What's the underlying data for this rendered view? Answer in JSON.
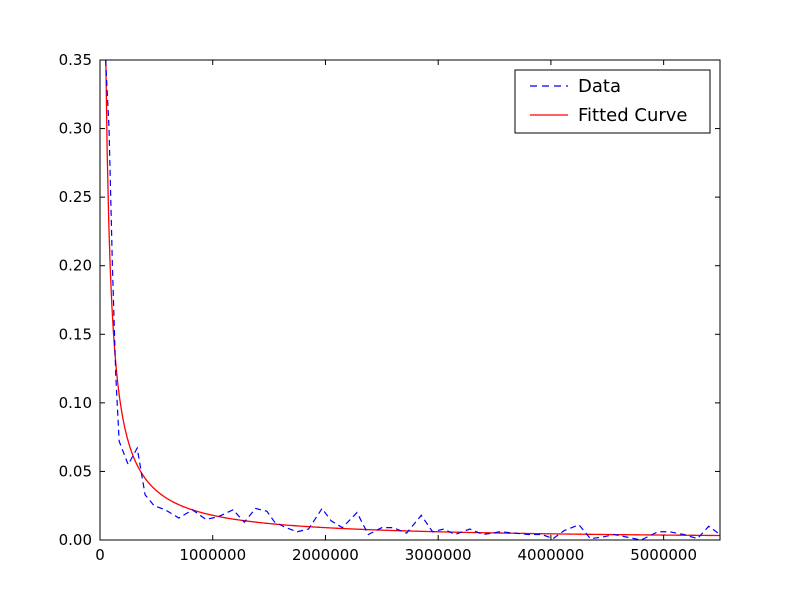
{
  "chart_data": {
    "type": "line",
    "title": "",
    "xlabel": "",
    "ylabel": "",
    "xlim": [
      0,
      5500000
    ],
    "ylim": [
      0,
      0.35
    ],
    "grid": false,
    "legend_placement": "top-right",
    "xticks": [
      {
        "value": 0,
        "label": "0"
      },
      {
        "value": 1000000,
        "label": "1000000"
      },
      {
        "value": 2000000,
        "label": "2000000"
      },
      {
        "value": 3000000,
        "label": "3000000"
      },
      {
        "value": 4000000,
        "label": "4000000"
      },
      {
        "value": 5000000,
        "label": "5000000"
      }
    ],
    "yticks": [
      {
        "value": 0.0,
        "label": "0.00"
      },
      {
        "value": 0.05,
        "label": "0.05"
      },
      {
        "value": 0.1,
        "label": "0.10"
      },
      {
        "value": 0.15,
        "label": "0.15"
      },
      {
        "value": 0.2,
        "label": "0.20"
      },
      {
        "value": 0.25,
        "label": "0.25"
      },
      {
        "value": 0.3,
        "label": "0.30"
      },
      {
        "value": 0.35,
        "label": "0.35"
      }
    ],
    "series": [
      {
        "name": "Data",
        "color": "#0000ff",
        "style": "dashed",
        "x": [
          50000,
          80000,
          110000,
          140000,
          170000,
          250000,
          330000,
          400000,
          480000,
          580000,
          700000,
          820000,
          940000,
          1050000,
          1180000,
          1280000,
          1380000,
          1480000,
          1550000,
          1650000,
          1750000,
          1850000,
          1970000,
          2050000,
          2150000,
          2280000,
          2380000,
          2500000,
          2600000,
          2720000,
          2850000,
          2950000,
          3050000,
          3150000,
          3280000,
          3400000,
          3550000,
          3680000,
          3800000,
          3920000,
          4020000,
          4120000,
          4250000,
          4350000,
          4450000,
          4560000,
          4680000,
          4800000,
          4950000,
          5050000,
          5180000,
          5300000,
          5400000,
          5500000
        ],
        "y": [
          0.35,
          0.3,
          0.2,
          0.12,
          0.072,
          0.055,
          0.067,
          0.033,
          0.025,
          0.022,
          0.016,
          0.022,
          0.015,
          0.017,
          0.022,
          0.013,
          0.023,
          0.021,
          0.013,
          0.009,
          0.006,
          0.008,
          0.023,
          0.014,
          0.009,
          0.02,
          0.004,
          0.009,
          0.009,
          0.005,
          0.018,
          0.006,
          0.008,
          0.004,
          0.008,
          0.004,
          0.006,
          0.005,
          0.004,
          0.004,
          0.001,
          0.007,
          0.011,
          0.001,
          0.002,
          0.004,
          0.002,
          0.0,
          0.006,
          0.006,
          0.004,
          0.001,
          0.01,
          0.004
        ]
      },
      {
        "name": "Fitted Curve",
        "color": "#ff0000",
        "style": "solid",
        "model": {
          "form": "a/x",
          "a": 18000
        },
        "x_range": [
          50000,
          5500000
        ]
      }
    ]
  }
}
